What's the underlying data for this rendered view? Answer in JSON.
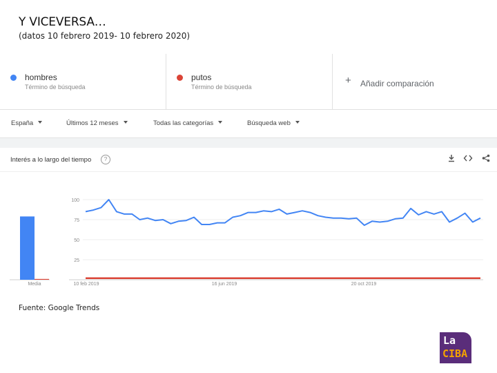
{
  "slide": {
    "title": "Y VICEVERSA…",
    "subtitle": "(datos 10 febrero 2019- 10 febrero 2020)",
    "source": "Fuente: Google Trends",
    "logo_line1": "La",
    "logo_line2": "CIBA"
  },
  "terms": [
    {
      "name": "hombres",
      "type": "Término de búsqueda",
      "color": "#4285f4"
    },
    {
      "name": "putos",
      "type": "Término de búsqueda",
      "color": "#db4437"
    }
  ],
  "add_comparison": "Añadir comparación",
  "filters": {
    "region": "España",
    "period": "Últimos 12 meses",
    "category": "Todas las categorías",
    "search_type": "Búsqueda web"
  },
  "card": {
    "title": "Interés a lo largo del tiempo",
    "icons": [
      "download-icon",
      "embed-icon",
      "share-icon"
    ]
  },
  "chart_data": {
    "type": "line",
    "title": "Interés a lo largo del tiempo",
    "ylim": [
      0,
      100
    ],
    "yticks": [
      "100",
      "75",
      "50",
      "25"
    ],
    "xticks": [
      "10 feb 2019",
      "16 jun 2019",
      "20 oct 2019"
    ],
    "average_bar": {
      "label": "Media",
      "values": [
        79,
        1
      ]
    },
    "series": [
      {
        "name": "hombres",
        "color": "#4285f4",
        "values": [
          85,
          87,
          90,
          100,
          85,
          82,
          82,
          75,
          77,
          74,
          75,
          70,
          73,
          74,
          78,
          69,
          69,
          71,
          71,
          78,
          80,
          84,
          84,
          86,
          85,
          88,
          82,
          84,
          86,
          84,
          80,
          78,
          77,
          77,
          76,
          77,
          68,
          73,
          72,
          73,
          76,
          77,
          89,
          81,
          85,
          82,
          85,
          72,
          77,
          83,
          72,
          77
        ]
      },
      {
        "name": "putos",
        "color": "#db4437",
        "values": [
          2,
          2,
          2,
          2,
          2,
          2,
          2,
          2,
          2,
          2,
          2,
          2,
          2,
          2,
          2,
          2,
          2,
          2,
          2,
          2,
          2,
          2,
          2,
          2,
          2,
          2,
          2,
          2,
          2,
          2,
          2,
          2,
          2,
          2,
          2,
          2,
          2,
          2,
          2,
          2,
          2,
          2,
          2,
          2,
          2,
          2,
          2,
          2,
          2,
          2,
          2,
          2
        ]
      }
    ]
  }
}
